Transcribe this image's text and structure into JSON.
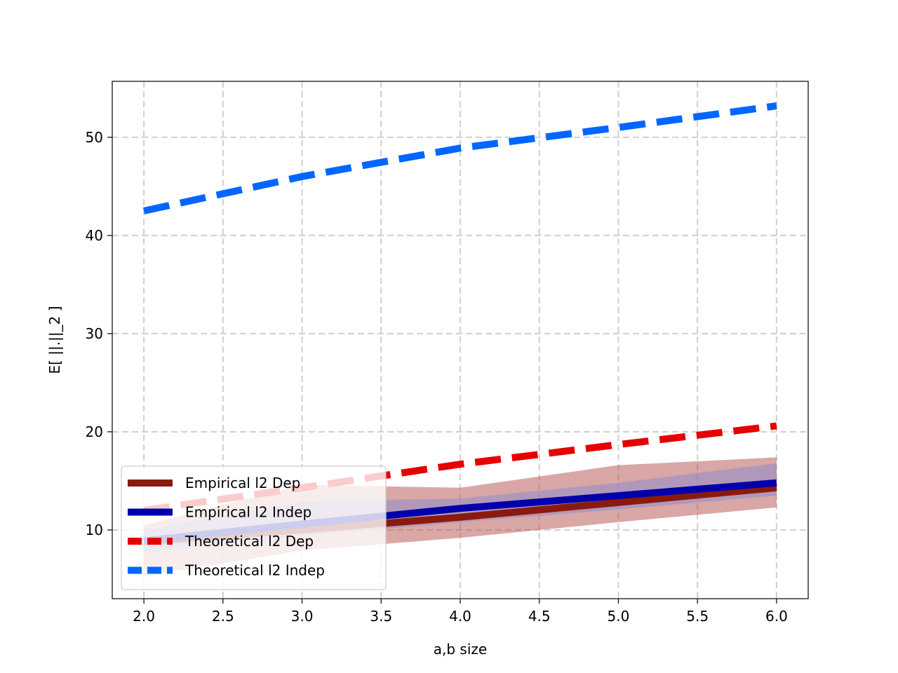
{
  "chart_data": {
    "type": "line",
    "title": "",
    "xlabel": "a,b size",
    "ylabel": "E[ ||.||_2 ]",
    "xlim": [
      1.8,
      6.2
    ],
    "ylim": [
      3.0,
      55.7
    ],
    "xticks": [
      2.0,
      2.5,
      3.0,
      3.5,
      4.0,
      4.5,
      5.0,
      5.5,
      6.0
    ],
    "xtick_labels": [
      "2.0",
      "2.5",
      "3.0",
      "3.5",
      "4.0",
      "4.5",
      "5.0",
      "5.5",
      "6.0"
    ],
    "yticks": [
      10,
      20,
      30,
      40,
      50
    ],
    "ytick_labels": [
      "10",
      "20",
      "30",
      "40",
      "50"
    ],
    "grid": true,
    "legend_position": "lower-left",
    "x": [
      2,
      3,
      4,
      5,
      6
    ],
    "series": [
      {
        "name": "Empirical l2 Dep",
        "values": [
          8.8,
          10.0,
          11.3,
          12.8,
          14.3
        ],
        "lower": [
          5.3,
          7.9,
          9.2,
          10.8,
          12.3
        ],
        "upper": [
          10.5,
          14.6,
          14.3,
          16.6,
          17.4
        ],
        "color": "#8b1a0e",
        "band_color": "#b4504c",
        "style": "solid"
      },
      {
        "name": "Empirical l2 Indep",
        "values": [
          8.9,
          10.6,
          12.2,
          13.5,
          14.8
        ],
        "lower": [
          7.7,
          9.4,
          10.8,
          12.1,
          13.5
        ],
        "upper": [
          10.0,
          12.9,
          13.2,
          14.8,
          16.8
        ],
        "color": "#0000aa",
        "band_color": "#8a8ad0",
        "style": "solid"
      },
      {
        "name": "Theoretical l2 Dep",
        "values": [
          12.0,
          14.3,
          16.7,
          18.7,
          20.6
        ],
        "color": "#e60000",
        "style": "dashed"
      },
      {
        "name": "Theoretical l2 Indep",
        "values": [
          42.5,
          46.0,
          48.9,
          51.0,
          53.2
        ],
        "color": "#0066ff",
        "style": "dashed"
      }
    ]
  }
}
